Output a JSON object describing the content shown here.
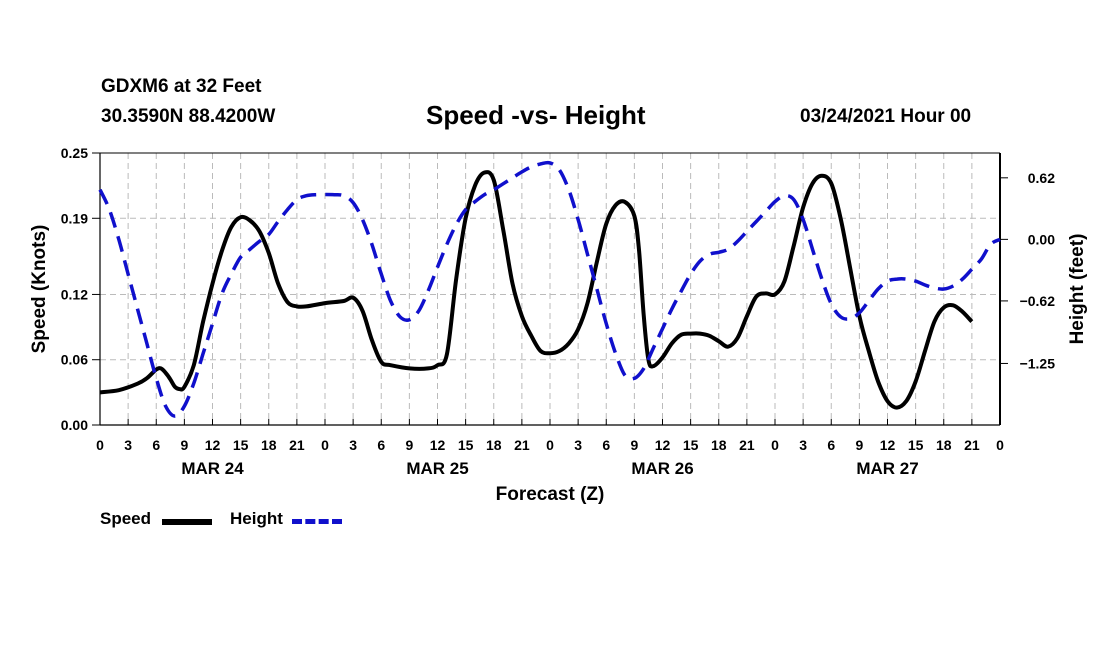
{
  "header": {
    "station": "GDXM6 at 32 Feet",
    "coords": "30.3590N 88.4200W",
    "title": "Speed -vs- Height",
    "datetime": "03/24/2021 Hour 00"
  },
  "legend": {
    "speed_label": "Speed",
    "height_label": "Height"
  },
  "colors": {
    "speed": "#000000",
    "height": "#1010cc",
    "grid": "#bbbbbb"
  },
  "chart_data": {
    "type": "line",
    "title": "Speed -vs- Height",
    "xlabel": "Forecast (Z)",
    "ylabel_left": "Speed (Knots)",
    "ylabel_right": "Height (feet)",
    "xlim": [
      0,
      96
    ],
    "x_tick_step": 3,
    "x_tick_labels": [
      "0",
      "3",
      "6",
      "9",
      "12",
      "15",
      "18",
      "21",
      "0",
      "3",
      "6",
      "9",
      "12",
      "15",
      "18",
      "21",
      "0",
      "3",
      "6",
      "9",
      "12",
      "15",
      "18",
      "21",
      "0",
      "3",
      "6",
      "9",
      "12",
      "15",
      "18",
      "21",
      "0"
    ],
    "day_labels": [
      {
        "label": "MAR 24",
        "hour": 12
      },
      {
        "label": "MAR 25",
        "hour": 36
      },
      {
        "label": "MAR 26",
        "hour": 60
      },
      {
        "label": "MAR 27",
        "hour": 84
      }
    ],
    "y_left": {
      "min": 0.0,
      "max": 0.25,
      "ticks": [
        0.0,
        0.06,
        0.12,
        0.19,
        0.25
      ],
      "tick_labels": [
        "0.00",
        "0.06",
        "0.12",
        "0.19",
        "0.25"
      ]
    },
    "y_right": {
      "min": -1.87,
      "max": 0.87,
      "ticks": [
        -1.25,
        -0.62,
        0.0,
        0.62
      ],
      "tick_labels": [
        "−1.25",
        "−0.62",
        "0.00",
        "0.62"
      ]
    },
    "grid": true,
    "series": [
      {
        "name": "Speed",
        "axis": "left",
        "points": [
          [
            0,
            0.03
          ],
          [
            2,
            0.032
          ],
          [
            4,
            0.038
          ],
          [
            5,
            0.043
          ],
          [
            6,
            0.051
          ],
          [
            6.5,
            0.052
          ],
          [
            7,
            0.048
          ],
          [
            7.5,
            0.042
          ],
          [
            8,
            0.035
          ],
          [
            8.5,
            0.033
          ],
          [
            9,
            0.035
          ],
          [
            10,
            0.055
          ],
          [
            11,
            0.095
          ],
          [
            12,
            0.13
          ],
          [
            13,
            0.16
          ],
          [
            14,
            0.182
          ],
          [
            15,
            0.191
          ],
          [
            16,
            0.188
          ],
          [
            17,
            0.178
          ],
          [
            18,
            0.158
          ],
          [
            19,
            0.13
          ],
          [
            20,
            0.113
          ],
          [
            21,
            0.109
          ],
          [
            22,
            0.109
          ],
          [
            24,
            0.112
          ],
          [
            26,
            0.114
          ],
          [
            27,
            0.117
          ],
          [
            28,
            0.105
          ],
          [
            29,
            0.078
          ],
          [
            30,
            0.058
          ],
          [
            31,
            0.055
          ],
          [
            33,
            0.052
          ],
          [
            35,
            0.052
          ],
          [
            36,
            0.055
          ],
          [
            37,
            0.065
          ],
          [
            38,
            0.135
          ],
          [
            39,
            0.19
          ],
          [
            40,
            0.22
          ],
          [
            41,
            0.232
          ],
          [
            42,
            0.225
          ],
          [
            43,
            0.18
          ],
          [
            44,
            0.13
          ],
          [
            45,
            0.1
          ],
          [
            46,
            0.082
          ],
          [
            47,
            0.068
          ],
          [
            48,
            0.066
          ],
          [
            49,
            0.068
          ],
          [
            50,
            0.075
          ],
          [
            51,
            0.088
          ],
          [
            52,
            0.112
          ],
          [
            53,
            0.15
          ],
          [
            54,
            0.185
          ],
          [
            55,
            0.202
          ],
          [
            56,
            0.205
          ],
          [
            57,
            0.192
          ],
          [
            57.5,
            0.16
          ],
          [
            58,
            0.1
          ],
          [
            58.5,
            0.06
          ],
          [
            59,
            0.054
          ],
          [
            60,
            0.062
          ],
          [
            61,
            0.075
          ],
          [
            62,
            0.083
          ],
          [
            63,
            0.084
          ],
          [
            64,
            0.084
          ],
          [
            65,
            0.082
          ],
          [
            66,
            0.077
          ],
          [
            67,
            0.072
          ],
          [
            68,
            0.08
          ],
          [
            69,
            0.1
          ],
          [
            70,
            0.118
          ],
          [
            71,
            0.121
          ],
          [
            72,
            0.12
          ],
          [
            73,
            0.132
          ],
          [
            74,
            0.165
          ],
          [
            75,
            0.2
          ],
          [
            76,
            0.222
          ],
          [
            77,
            0.229
          ],
          [
            78,
            0.222
          ],
          [
            79,
            0.19
          ],
          [
            80,
            0.145
          ],
          [
            81,
            0.1
          ],
          [
            82,
            0.068
          ],
          [
            83,
            0.04
          ],
          [
            84,
            0.022
          ],
          [
            85,
            0.016
          ],
          [
            86,
            0.022
          ],
          [
            87,
            0.04
          ],
          [
            88,
            0.068
          ],
          [
            89,
            0.095
          ],
          [
            90,
            0.108
          ],
          [
            91,
            0.11
          ],
          [
            92,
            0.104
          ],
          [
            93,
            0.095
          ]
        ]
      },
      {
        "name": "Height",
        "axis": "right",
        "points": [
          [
            0,
            0.5
          ],
          [
            1,
            0.3
          ],
          [
            2,
            0.0
          ],
          [
            3,
            -0.35
          ],
          [
            4,
            -0.7
          ],
          [
            5,
            -1.05
          ],
          [
            6,
            -1.4
          ],
          [
            7,
            -1.68
          ],
          [
            8,
            -1.78
          ],
          [
            9,
            -1.68
          ],
          [
            10,
            -1.45
          ],
          [
            11,
            -1.15
          ],
          [
            12,
            -0.85
          ],
          [
            13,
            -0.55
          ],
          [
            14,
            -0.35
          ],
          [
            15,
            -0.18
          ],
          [
            16,
            -0.1
          ],
          [
            17,
            -0.02
          ],
          [
            18,
            0.05
          ],
          [
            19,
            0.18
          ],
          [
            20,
            0.3
          ],
          [
            21,
            0.4
          ],
          [
            22,
            0.44
          ],
          [
            23,
            0.45
          ],
          [
            25,
            0.45
          ],
          [
            26,
            0.44
          ],
          [
            27,
            0.37
          ],
          [
            28,
            0.2
          ],
          [
            29,
            -0.05
          ],
          [
            30,
            -0.35
          ],
          [
            31,
            -0.62
          ],
          [
            32,
            -0.78
          ],
          [
            33,
            -0.81
          ],
          [
            34,
            -0.72
          ],
          [
            35,
            -0.52
          ],
          [
            36,
            -0.28
          ],
          [
            37,
            -0.05
          ],
          [
            38,
            0.15
          ],
          [
            39,
            0.3
          ],
          [
            40,
            0.38
          ],
          [
            41,
            0.45
          ],
          [
            42,
            0.5
          ],
          [
            43,
            0.56
          ],
          [
            44,
            0.62
          ],
          [
            45,
            0.68
          ],
          [
            46,
            0.73
          ],
          [
            47,
            0.76
          ],
          [
            48,
            0.77
          ],
          [
            49,
            0.7
          ],
          [
            50,
            0.5
          ],
          [
            51,
            0.2
          ],
          [
            52,
            -0.15
          ],
          [
            53,
            -0.5
          ],
          [
            54,
            -0.85
          ],
          [
            55,
            -1.15
          ],
          [
            56,
            -1.37
          ],
          [
            57,
            -1.4
          ],
          [
            58,
            -1.3
          ],
          [
            59,
            -1.1
          ],
          [
            60,
            -0.9
          ],
          [
            61,
            -0.7
          ],
          [
            62,
            -0.52
          ],
          [
            63,
            -0.35
          ],
          [
            64,
            -0.22
          ],
          [
            65,
            -0.15
          ],
          [
            66,
            -0.13
          ],
          [
            67,
            -0.1
          ],
          [
            68,
            -0.02
          ],
          [
            69,
            0.08
          ],
          [
            70,
            0.18
          ],
          [
            71,
            0.28
          ],
          [
            72,
            0.38
          ],
          [
            73,
            0.44
          ],
          [
            74,
            0.4
          ],
          [
            75,
            0.2
          ],
          [
            76,
            -0.1
          ],
          [
            77,
            -0.4
          ],
          [
            78,
            -0.65
          ],
          [
            79,
            -0.78
          ],
          [
            80,
            -0.8
          ],
          [
            81,
            -0.74
          ],
          [
            82,
            -0.62
          ],
          [
            83,
            -0.5
          ],
          [
            84,
            -0.42
          ],
          [
            85,
            -0.4
          ],
          [
            86,
            -0.4
          ],
          [
            87,
            -0.42
          ],
          [
            88,
            -0.46
          ],
          [
            89,
            -0.49
          ],
          [
            90,
            -0.5
          ],
          [
            91,
            -0.47
          ],
          [
            92,
            -0.4
          ],
          [
            93,
            -0.3
          ],
          [
            94,
            -0.2
          ],
          [
            95,
            -0.05
          ],
          [
            96,
            0.0
          ]
        ]
      }
    ]
  }
}
